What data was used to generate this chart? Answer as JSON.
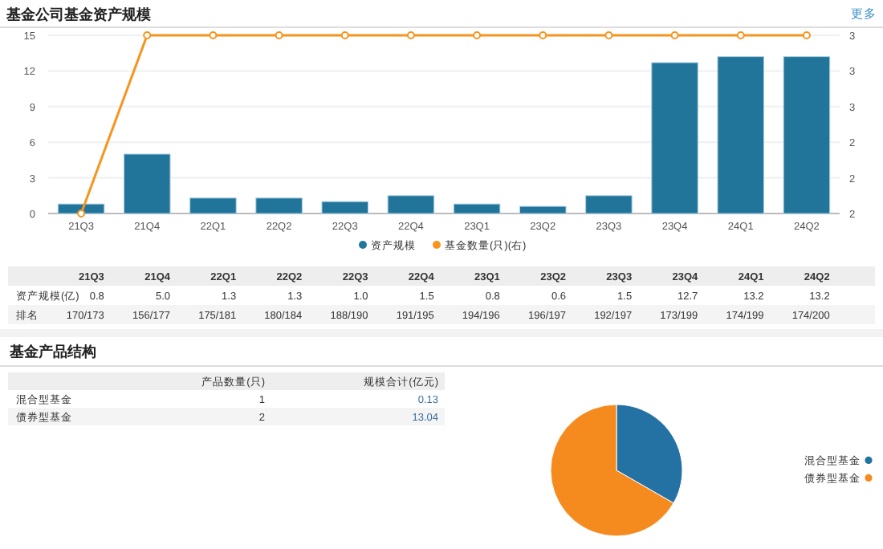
{
  "chart_data": [
    {
      "type": "bar",
      "title": "基金公司基金资产规模",
      "categories": [
        "21Q3",
        "21Q4",
        "22Q1",
        "22Q2",
        "22Q3",
        "22Q4",
        "23Q1",
        "23Q2",
        "23Q3",
        "23Q4",
        "24Q1",
        "24Q2"
      ],
      "series": [
        {
          "name": "资产规模",
          "color": "#21759b",
          "values": [
            0.8,
            5.0,
            1.3,
            1.3,
            1.0,
            1.5,
            0.8,
            0.6,
            1.5,
            12.7,
            13.2,
            13.2
          ],
          "value_labels": [
            "0.8",
            "5.0",
            "1.3",
            "1.3",
            "1.0",
            "1.5",
            "0.8",
            "0.6",
            "1.5",
            "12.7",
            "13.2",
            "13.2"
          ]
        },
        {
          "name": "基金数量(只)(右)",
          "type": "line",
          "axis": "y2",
          "color": "#f7941d",
          "values": [
            2,
            3,
            3,
            3,
            3,
            3,
            3,
            3,
            3,
            3,
            3,
            3
          ]
        }
      ],
      "ylim": [
        0,
        15
      ],
      "yticks": [
        0,
        3,
        6,
        9,
        12,
        15
      ],
      "y2lim": [
        2,
        3
      ],
      "y2ticks": [
        {
          "value": 2,
          "label": "2"
        },
        {
          "value": 2.2,
          "label": "2"
        },
        {
          "value": 2.4,
          "label": "2"
        },
        {
          "value": 2.6,
          "label": "3"
        },
        {
          "value": 2.8,
          "label": "3"
        },
        {
          "value": 3,
          "label": "3"
        }
      ],
      "grid": "y",
      "legend": "bottom",
      "marker": "circle",
      "annotations": [
        "更多",
        "资产规模(亿)",
        "排名",
        "170/173",
        "156/177",
        "175/181",
        "180/184",
        "188/190",
        "191/195",
        "194/196",
        "196/197",
        "192/197",
        "173/199",
        "174/199",
        "174/200"
      ]
    },
    {
      "type": "other",
      "title": "基金产品结构",
      "categories": [
        "混合型基金",
        "债券型基金"
      ],
      "series": [
        {
          "name": "产品数量(只)",
          "values": [
            1,
            2
          ]
        },
        {
          "name": "规模合计(亿元)",
          "values": [
            0.13,
            13.04
          ]
        }
      ],
      "data_labels": true
    },
    {
      "type": "pie",
      "categories": [
        "混合型基金",
        "债券型基金"
      ],
      "values": [
        33.3,
        66.7
      ],
      "colors": [
        "#2471a3",
        "#f58a1f"
      ],
      "legend": "right"
    }
  ]
}
